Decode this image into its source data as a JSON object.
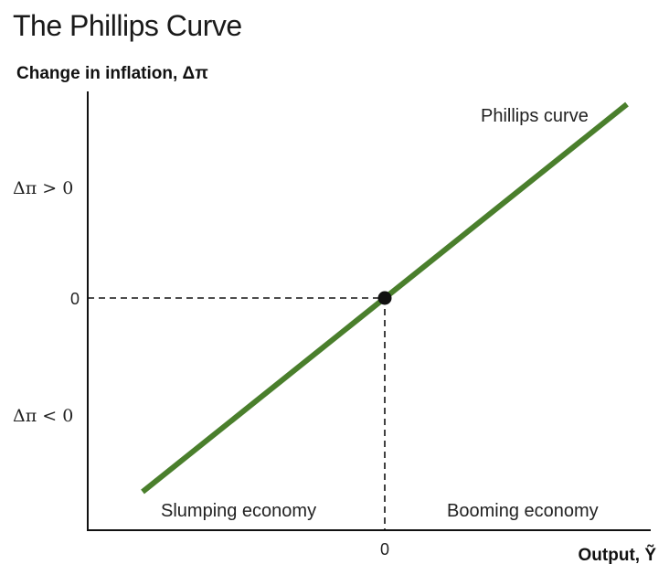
{
  "chart_data": {
    "type": "line",
    "title": "The Phillips Curve",
    "ylabel": "Change in inflation, Δπ",
    "xlabel": "Output, Ỹ",
    "y_ticks": [
      "Δπ > 0",
      "0",
      "Δπ < 0"
    ],
    "x_ticks": [
      "0"
    ],
    "series": [
      {
        "name": "Phillips curve",
        "x": [
          -1,
          1
        ],
        "y": [
          -1,
          1
        ],
        "color": "#4a7f2c"
      }
    ],
    "point": {
      "x": 0,
      "y": 0
    },
    "annotations": {
      "left_region": "Slumping economy",
      "right_region": "Booming economy"
    },
    "grid": false
  }
}
